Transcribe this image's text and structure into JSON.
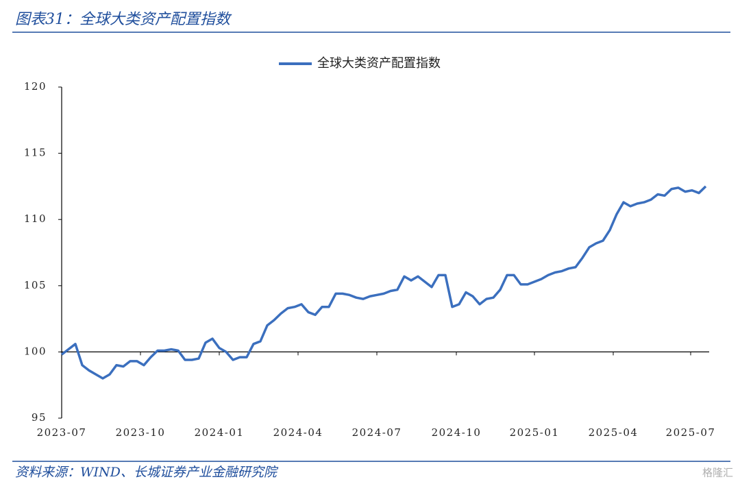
{
  "header": {
    "title": "图表31：全球大类资产配置指数"
  },
  "chart_data": {
    "type": "line",
    "series": [
      {
        "name": "全球大类资产配置指数",
        "color": "#3b6fbe",
        "values": [
          99.8,
          100.2,
          100.6,
          99.0,
          98.6,
          98.3,
          98.0,
          98.3,
          99.0,
          98.9,
          99.3,
          99.3,
          99.0,
          99.6,
          100.1,
          100.1,
          100.2,
          100.1,
          99.4,
          99.4,
          99.5,
          100.7,
          101.0,
          100.3,
          100.0,
          99.4,
          99.6,
          99.6,
          100.6,
          100.8,
          102.0,
          102.4,
          102.9,
          103.3,
          103.4,
          103.6,
          103.0,
          102.8,
          103.4,
          103.4,
          104.4,
          104.4,
          104.3,
          104.1,
          104.0,
          104.2,
          104.3,
          104.4,
          104.6,
          104.7,
          105.7,
          105.4,
          105.7,
          105.3,
          104.9,
          105.8,
          105.8,
          103.4,
          103.6,
          104.5,
          104.2,
          103.6,
          104.0,
          104.1,
          104.7,
          105.8,
          105.8,
          105.1,
          105.1,
          105.3,
          105.5,
          105.8,
          106.0,
          106.1,
          106.3,
          106.4,
          107.1,
          107.9,
          108.2,
          108.4,
          109.2,
          110.4,
          111.3,
          111.0,
          111.2,
          111.3,
          111.5,
          111.9,
          111.8,
          112.3,
          112.4,
          112.1,
          112.2,
          112.0,
          112.5
        ]
      }
    ],
    "xlim": [
      0,
      94.5
    ],
    "xticks": [
      {
        "value": 0,
        "label": "2023-07"
      },
      {
        "value": 11.5,
        "label": "2023-10"
      },
      {
        "value": 23,
        "label": "2024-01"
      },
      {
        "value": 34.5,
        "label": "2024-04"
      },
      {
        "value": 46,
        "label": "2024-07"
      },
      {
        "value": 57.6,
        "label": "2024-10"
      },
      {
        "value": 69,
        "label": "2025-01"
      },
      {
        "value": 80.5,
        "label": "2025-04"
      },
      {
        "value": 91.8,
        "label": "2025-07"
      }
    ],
    "ylim": [
      95,
      120
    ],
    "yticks": [
      95,
      100,
      105,
      110,
      115,
      120
    ],
    "x_axis_crosses": 100,
    "grid": false,
    "legend": "top"
  },
  "footer": {
    "source": "资料来源：WIND、长城证券产业金融研究院",
    "watermark": "格隆汇"
  }
}
